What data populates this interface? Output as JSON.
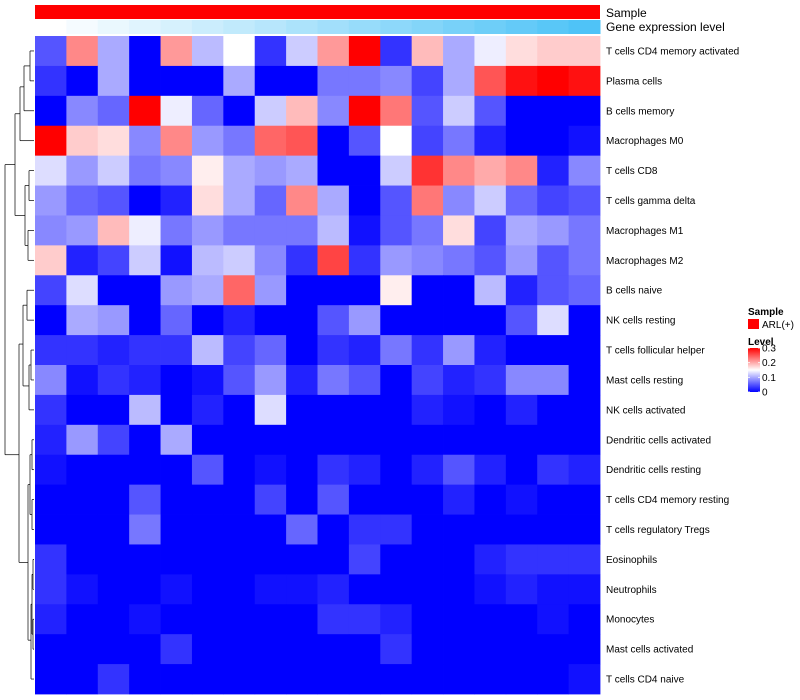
{
  "chart_data": {
    "type": "heatmap",
    "title": "",
    "annotations": {
      "sample_label": "Sample",
      "gene_label": "Gene expression level",
      "sample_color": "#ff0000",
      "gene_colors": [
        "#ffffff",
        "#4fc3f7"
      ]
    },
    "rows": [
      "T cells CD4 memory activated",
      "Plasma cells",
      "B cells memory",
      "Macrophages M0",
      "T cells CD8",
      "T cells gamma delta",
      "Macrophages M1",
      "Macrophages M2",
      "B cells naive",
      "NK cells resting",
      "T cells follicular helper",
      "Mast cells resting",
      "NK cells activated",
      "Dendritic cells activated",
      "Dendritic cells resting",
      "T cells CD4 memory resting",
      "T cells regulatory  Tregs",
      "Eosinophils",
      "Neutrophils",
      "Monocytes",
      "Mast cells activated",
      "T cells CD4 naive"
    ],
    "n_columns": 18,
    "values": [
      [
        0.05,
        0.22,
        0.1,
        0.0,
        0.21,
        0.11,
        0.15,
        0.03,
        0.12,
        0.21,
        0.3,
        0.03,
        0.19,
        0.1,
        0.14,
        0.17,
        0.18,
        0.18
      ],
      [
        0.03,
        0.0,
        0.1,
        0.0,
        0.0,
        0.0,
        0.1,
        0.0,
        0.0,
        0.07,
        0.07,
        0.08,
        0.04,
        0.1,
        0.25,
        0.29,
        0.3,
        0.29
      ],
      [
        0.0,
        0.08,
        0.06,
        0.3,
        0.14,
        0.06,
        0.0,
        0.12,
        0.19,
        0.08,
        0.3,
        0.23,
        0.05,
        0.12,
        0.05,
        0.0,
        0.0,
        0.0
      ],
      [
        0.3,
        0.18,
        0.17,
        0.08,
        0.22,
        0.09,
        0.07,
        0.24,
        0.25,
        0.0,
        0.05,
        0.15,
        0.04,
        0.07,
        0.02,
        0.0,
        0.0,
        0.01
      ],
      [
        0.13,
        0.09,
        0.12,
        0.07,
        0.08,
        0.16,
        0.1,
        0.09,
        0.1,
        0.0,
        0.0,
        0.12,
        0.27,
        0.22,
        0.2,
        0.22,
        0.02,
        0.08
      ],
      [
        0.09,
        0.06,
        0.05,
        0.0,
        0.02,
        0.17,
        0.1,
        0.06,
        0.22,
        0.1,
        0.0,
        0.05,
        0.23,
        0.08,
        0.12,
        0.06,
        0.04,
        0.05
      ],
      [
        0.08,
        0.09,
        0.19,
        0.14,
        0.07,
        0.09,
        0.07,
        0.07,
        0.07,
        0.11,
        0.01,
        0.05,
        0.07,
        0.17,
        0.04,
        0.1,
        0.09,
        0.07
      ],
      [
        0.18,
        0.02,
        0.04,
        0.12,
        0.01,
        0.11,
        0.12,
        0.08,
        0.03,
        0.26,
        0.03,
        0.09,
        0.08,
        0.07,
        0.05,
        0.09,
        0.05,
        0.07
      ],
      [
        0.04,
        0.13,
        0.0,
        0.0,
        0.09,
        0.1,
        0.24,
        0.09,
        0.0,
        0.0,
        0.0,
        0.16,
        0.0,
        0.0,
        0.11,
        0.02,
        0.05,
        0.06
      ],
      [
        0.0,
        0.1,
        0.09,
        0.0,
        0.06,
        0.0,
        0.02,
        0.0,
        0.0,
        0.05,
        0.09,
        0.0,
        0.0,
        0.0,
        0.0,
        0.05,
        0.13,
        0.0
      ],
      [
        0.03,
        0.03,
        0.02,
        0.03,
        0.03,
        0.11,
        0.04,
        0.06,
        0.0,
        0.03,
        0.02,
        0.07,
        0.03,
        0.09,
        0.02,
        0.0,
        0.0,
        0.0
      ],
      [
        0.08,
        0.01,
        0.03,
        0.02,
        0.0,
        0.01,
        0.05,
        0.09,
        0.02,
        0.07,
        0.05,
        0.0,
        0.04,
        0.02,
        0.03,
        0.08,
        0.08,
        0.0
      ],
      [
        0.03,
        0.0,
        0.0,
        0.11,
        0.0,
        0.02,
        0.0,
        0.13,
        0.0,
        0.0,
        0.0,
        0.0,
        0.02,
        0.01,
        0.0,
        0.02,
        0.0,
        0.0
      ],
      [
        0.02,
        0.09,
        0.04,
        0.0,
        0.1,
        0.0,
        0.0,
        0.0,
        0.0,
        0.0,
        0.0,
        0.0,
        0.0,
        0.0,
        0.0,
        0.0,
        0.0,
        0.0
      ],
      [
        0.01,
        0.0,
        0.0,
        0.0,
        0.0,
        0.05,
        0.0,
        0.01,
        0.0,
        0.03,
        0.02,
        0.0,
        0.02,
        0.05,
        0.02,
        0.0,
        0.03,
        0.02
      ],
      [
        0.0,
        0.0,
        0.0,
        0.05,
        0.0,
        0.0,
        0.0,
        0.04,
        0.0,
        0.05,
        0.0,
        0.0,
        0.0,
        0.02,
        0.0,
        0.01,
        0.0,
        0.0
      ],
      [
        0.0,
        0.0,
        0.0,
        0.07,
        0.0,
        0.0,
        0.0,
        0.0,
        0.06,
        0.0,
        0.03,
        0.03,
        0.0,
        0.0,
        0.0,
        0.0,
        0.0,
        0.0
      ],
      [
        0.03,
        0.0,
        0.0,
        0.0,
        0.0,
        0.0,
        0.0,
        0.0,
        0.0,
        0.0,
        0.04,
        0.0,
        0.0,
        0.0,
        0.02,
        0.03,
        0.03,
        0.03
      ],
      [
        0.03,
        0.01,
        0.0,
        0.0,
        0.01,
        0.0,
        0.0,
        0.01,
        0.01,
        0.02,
        0.0,
        0.0,
        0.0,
        0.0,
        0.01,
        0.02,
        0.01,
        0.01
      ],
      [
        0.02,
        0.0,
        0.0,
        0.01,
        0.0,
        0.0,
        0.0,
        0.0,
        0.0,
        0.03,
        0.03,
        0.02,
        0.0,
        0.0,
        0.0,
        0.0,
        0.01,
        0.0
      ],
      [
        0.0,
        0.0,
        0.0,
        0.0,
        0.03,
        0.0,
        0.0,
        0.0,
        0.0,
        0.0,
        0.0,
        0.03,
        0.0,
        0.0,
        0.0,
        0.0,
        0.0,
        0.0
      ],
      [
        0.0,
        0.0,
        0.03,
        0.0,
        0.0,
        0.0,
        0.0,
        0.0,
        0.0,
        0.0,
        0.0,
        0.0,
        0.0,
        0.0,
        0.0,
        0.0,
        0.0,
        0.01
      ]
    ],
    "color_scale": {
      "low": "#0000ff",
      "mid": "#ffffff",
      "high": "#ff0000",
      "min": 0,
      "mid_value": 0.15,
      "max": 0.3
    },
    "legend": {
      "sample_title": "Sample",
      "sample_entry": "ARL(+)",
      "level_title": "Level",
      "ticks": [
        "0.3",
        "0.2",
        "0.1",
        "0"
      ],
      "tick_values": [
        0.3,
        0.2,
        0.1,
        0
      ]
    }
  }
}
